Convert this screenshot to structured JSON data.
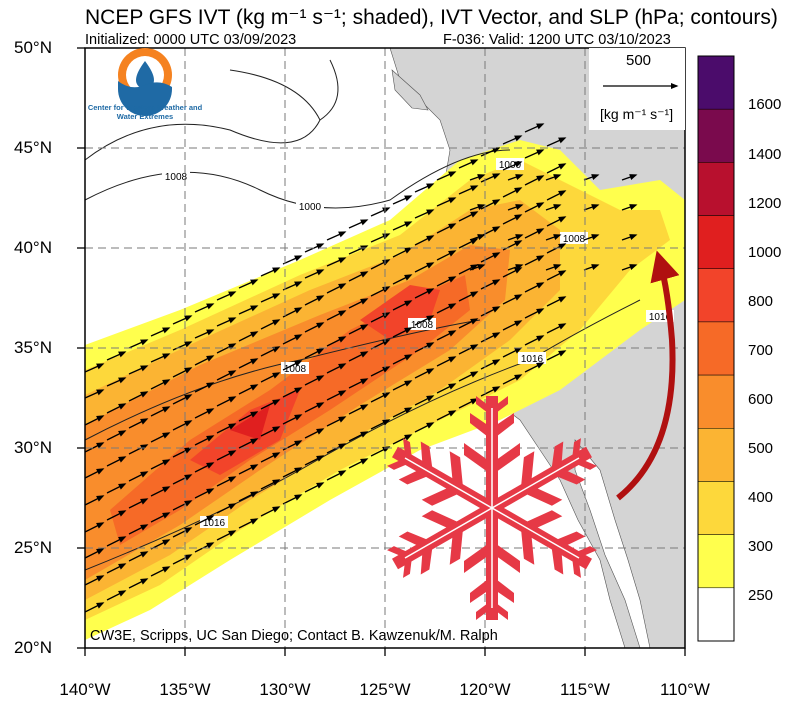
{
  "header": {
    "title": "NCEP GFS IVT (kg m⁻¹ s⁻¹; shaded), IVT Vector, and SLP (hPa; contours)",
    "initialized": "Initialized: 0000 UTC 03/09/2023",
    "valid": "F-036: Valid: 1200 UTC 03/10/2023"
  },
  "logo": {
    "org_name": "Center for Western Weather and Water Extremes",
    "icon": "water-drop-logo-icon"
  },
  "reference_vector": {
    "value": "500",
    "unit": "[kg m⁻¹ s⁻¹]"
  },
  "axes": {
    "lat_labels": [
      "50°N",
      "45°N",
      "40°N",
      "35°N",
      "30°N",
      "25°N",
      "20°N"
    ],
    "lon_labels": [
      "140°W",
      "135°W",
      "130°W",
      "125°W",
      "120°W",
      "115°W",
      "110°W"
    ]
  },
  "colorbar": {
    "labels": [
      "1600",
      "1400",
      "1200",
      "1000",
      "800",
      "700",
      "600",
      "500",
      "400",
      "300",
      "250"
    ],
    "colors": [
      "#4b0c6b",
      "#7a0a4d",
      "#b8102e",
      "#e01f1f",
      "#f2442a",
      "#f66a27",
      "#f98d2c",
      "#fbb433",
      "#fdd83b",
      "#ffff4d",
      "#ffffff"
    ]
  },
  "contours": {
    "slp_labels": [
      "1000",
      "1000",
      "1008",
      "1008",
      "1008",
      "1016",
      "1016",
      "1016",
      "1008"
    ]
  },
  "credit": "CW3E, Scripps, UC San Diego; Contact B. Kawzenuk/M. Ralph"
}
